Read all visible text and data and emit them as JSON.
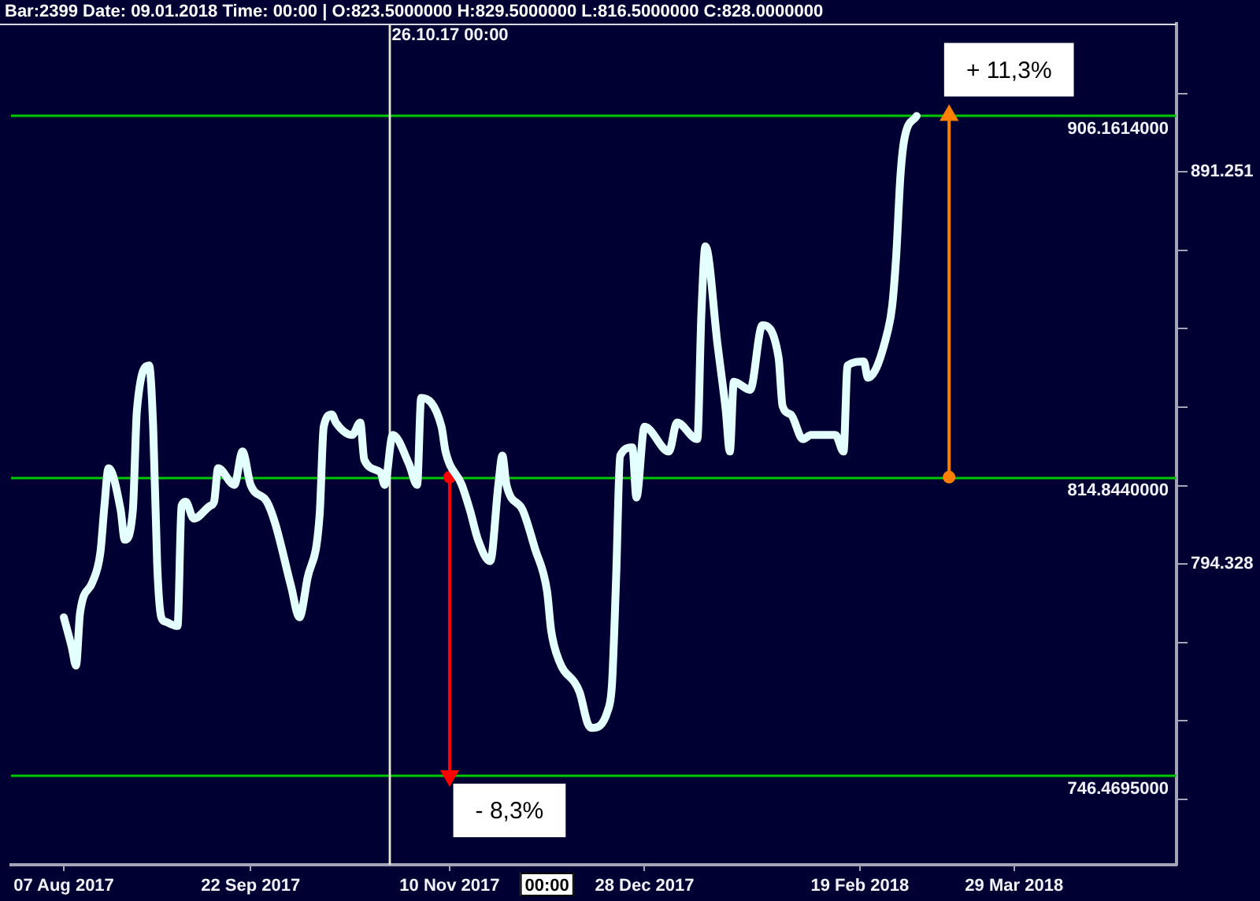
{
  "chart_data": {
    "type": "line",
    "title": "Bar:2399 Date: 09.01.2018 Time: 00:00 | O:823.5000000 H:829.5000000 L:816.5000000 C:828.0000000",
    "xlim": [
      "2017-07-25",
      "2018-05-08"
    ],
    "xticks": [
      {
        "value": "2017-08-07",
        "label": "07 Aug 2017"
      },
      {
        "value": "2017-09-22",
        "label": "22 Sep 2017"
      },
      {
        "value": "2017-11-10",
        "label": "10 Nov 2017"
      },
      {
        "value": "2017-12-28",
        "label": "28 Dec 2017"
      },
      {
        "value": "2018-02-19",
        "label": "19 Feb 2018"
      },
      {
        "value": "2018-03-29",
        "label": "29 Mar 2018"
      }
    ],
    "ylim": [
      727.2,
      930.9
    ],
    "log": "y",
    "yticks": [
      {
        "value": 741.31,
        "label": null
      },
      {
        "value": 758.578,
        "label": null
      },
      {
        "value": 776.247,
        "label": null
      },
      794.328,
      {
        "value": 812.831,
        "label": null
      },
      {
        "value": 831.764,
        "label": null
      },
      {
        "value": 851.138,
        "label": null
      },
      {
        "value": 870.964,
        "label": null
      },
      891.251,
      {
        "value": 912.011,
        "label": null
      }
    ],
    "series": [
      {
        "color": "#e4ffff",
        "x": [
          "2017-08-07",
          "2017-08-09",
          "2017-08-10",
          "2017-08-11",
          "2017-08-14",
          "2017-08-16",
          "2017-08-17",
          "2017-08-18",
          "2017-08-21",
          "2017-08-22",
          "2017-08-24",
          "2017-08-25",
          "2017-08-28",
          "2017-08-29",
          "2017-08-30",
          "2017-08-31",
          "2017-09-01",
          "2017-09-04",
          "2017-09-05",
          "2017-09-06",
          "2017-09-08",
          "2017-09-12",
          "2017-09-13",
          "2017-09-14",
          "2017-09-18",
          "2017-09-20",
          "2017-09-22",
          "2017-09-26",
          "2017-09-28",
          "2017-10-02",
          "2017-10-04",
          "2017-10-06",
          "2017-10-09",
          "2017-10-10",
          "2017-10-12",
          "2017-10-13",
          "2017-10-17",
          "2017-10-19",
          "2017-10-20",
          "2017-10-24",
          "2017-10-25",
          "2017-10-27",
          "2017-10-31",
          "2017-11-02",
          "2017-11-03",
          "2017-11-08",
          "2017-11-09",
          "2017-11-13",
          "2017-11-15",
          "2017-11-17",
          "2017-11-20",
          "2017-11-22",
          "2017-11-23",
          "2017-11-24",
          "2017-11-28",
          "2017-12-01",
          "2017-12-04",
          "2017-12-05",
          "2017-12-07",
          "2017-12-12",
          "2017-12-14",
          "2017-12-15",
          "2017-12-19",
          "2017-12-20",
          "2017-12-21",
          "2017-12-22",
          "2017-12-25",
          "2017-12-26",
          "2017-12-28",
          "2018-01-03",
          "2018-01-05",
          "2018-01-10",
          "2018-01-11",
          "2018-01-12",
          "2018-01-15",
          "2018-01-17",
          "2018-01-18",
          "2018-01-19",
          "2018-01-23",
          "2018-01-26",
          "2018-01-30",
          "2018-01-31",
          "2018-02-02",
          "2018-02-05",
          "2018-02-07",
          "2018-02-09",
          "2018-02-13",
          "2018-02-15",
          "2018-02-16",
          "2018-02-20",
          "2018-02-21",
          "2018-02-26",
          "2018-02-27",
          "2018-02-28",
          "2018-03-01",
          "2018-03-02",
          "2018-03-05"
        ],
        "values": [
          782,
          775,
          771,
          783,
          790,
          797,
          808,
          817,
          807,
          800,
          807,
          831,
          842,
          827,
          794,
          782,
          781,
          780,
          808,
          809,
          805,
          808,
          809,
          817,
          813,
          821,
          813,
          809,
          804,
          789,
          782,
          791,
          806,
          827,
          830,
          828,
          825,
          828,
          819,
          816,
          813,
          825,
          818,
          813,
          834,
          827,
          821,
          813,
          807,
          800,
          795,
          813,
          820,
          813,
          807,
          798,
          788,
          779,
          772,
          765,
          758,
          757,
          761,
          767,
          791,
          820,
          822,
          810,
          827,
          821,
          828,
          824,
          855,
          872,
          847,
          831,
          821,
          838,
          836,
          852,
          844,
          832,
          830,
          824,
          825,
          825,
          825,
          821,
          842,
          843,
          839,
          851,
          857,
          870,
          890,
          900,
          906
        ]
      },
      {
        "color": "#ff8000",
        "x": [
          "2018-03-13",
          "2018-03-13"
        ],
        "values": [
          814.844,
          906.1614
        ],
        "marker": "circle"
      },
      {
        "color": "#ff0000",
        "x": [
          "2017-11-10",
          "2017-11-10"
        ],
        "values": [
          814.844,
          746.4695
        ],
        "marker": "circle"
      }
    ],
    "ref_lines": [
      {
        "axis": "y",
        "value": 906.1614,
        "label": "906.1614000",
        "color": "#00c800"
      },
      {
        "axis": "y",
        "value": 814.844,
        "label": "814.8440000",
        "color": "#00c800"
      },
      {
        "axis": "y",
        "value": 746.4695,
        "label": "746.4695000",
        "color": "#00c800"
      },
      {
        "axis": "x",
        "value": "2017-10-26",
        "label": "26.10.17 00:00",
        "color": "#e8e8d0"
      }
    ],
    "annotations": [
      {
        "text": "+ 11,3%",
        "x": "2018-03-13",
        "y": 906.1614
      },
      {
        "text": "- 8,3%",
        "x": "2017-11-10",
        "y": 746.4695
      },
      "00:00"
    ]
  }
}
